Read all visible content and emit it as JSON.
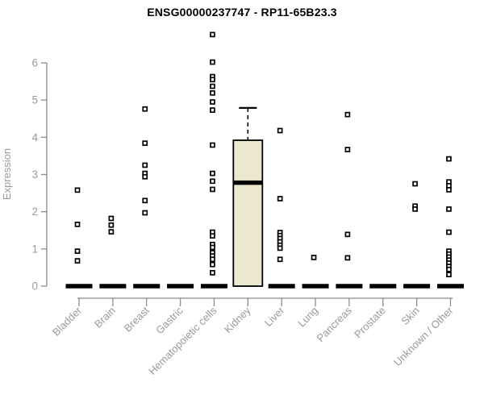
{
  "page": {
    "background": "#ffffff"
  },
  "chart_data": {
    "type": "boxplot-scatter",
    "title": "ENSG00000237747 - RP11-65B23.3",
    "ylabel": "Expression",
    "xlabel": "",
    "yticks": [
      0,
      1,
      2,
      3,
      4,
      5,
      6
    ],
    "ylim": [
      0,
      6.9
    ],
    "grid": false,
    "legend": "none",
    "categories": [
      "Bladder",
      "Brain",
      "Breast",
      "Gastric",
      "Hematopoietic cells",
      "Kidney",
      "Liver",
      "Lung",
      "Pancreas",
      "Prostate",
      "Skin",
      "Unknown / Other"
    ],
    "series": [
      {
        "category": "Bladder",
        "median": 0,
        "points": [
          2.58,
          1.66,
          0.94,
          0.68
        ]
      },
      {
        "category": "Brain",
        "median": 0,
        "points": [
          1.82,
          1.64,
          1.46
        ]
      },
      {
        "category": "Breast",
        "median": 0,
        "points": [
          4.76,
          3.84,
          3.25,
          3.03,
          2.94,
          2.3,
          1.97
        ]
      },
      {
        "category": "Gastric",
        "median": 0,
        "points": []
      },
      {
        "category": "Hematopoietic cells",
        "median": 0,
        "points": [
          6.76,
          6.02,
          5.63,
          5.55,
          5.37,
          5.19,
          4.95,
          4.73,
          3.79,
          3.03,
          2.82,
          2.6,
          1.45,
          1.35,
          1.12,
          1.04,
          0.9,
          0.81,
          0.72,
          0.58,
          0.36
        ]
      },
      {
        "category": "Kidney",
        "box": {
          "q1": 0,
          "median": 2.78,
          "q3": 3.92,
          "whisker_low": 0,
          "whisker_high": 4.79
        },
        "points": []
      },
      {
        "category": "Liver",
        "median": 0,
        "points": [
          4.18,
          2.35,
          1.44,
          1.36,
          1.28,
          1.19,
          1.1,
          1.02,
          0.72
        ]
      },
      {
        "category": "Lung",
        "median": 0,
        "points": [
          0.77
        ]
      },
      {
        "category": "Pancreas",
        "median": 0,
        "points": [
          4.61,
          3.67,
          1.39,
          0.76
        ]
      },
      {
        "category": "Prostate",
        "median": 0,
        "points": []
      },
      {
        "category": "Skin",
        "median": 0,
        "points": [
          2.75,
          2.15,
          2.07
        ]
      },
      {
        "category": "Unknown / Other",
        "median": 0,
        "points": [
          3.42,
          2.8,
          2.7,
          2.59,
          2.07,
          1.45,
          0.94,
          0.86,
          0.78,
          0.7,
          0.62,
          0.53,
          0.45,
          0.31
        ]
      }
    ],
    "colors": {
      "title": "#000000",
      "axis": "#8c8c8c",
      "tick_label": "#9a9a9a",
      "axis_title": "#9a9a9a",
      "point_stroke": "#000000",
      "point_fill": "#ffffff",
      "median_bar": "#000000",
      "box_fill": "#ece8d0",
      "box_stroke": "#000000"
    }
  }
}
